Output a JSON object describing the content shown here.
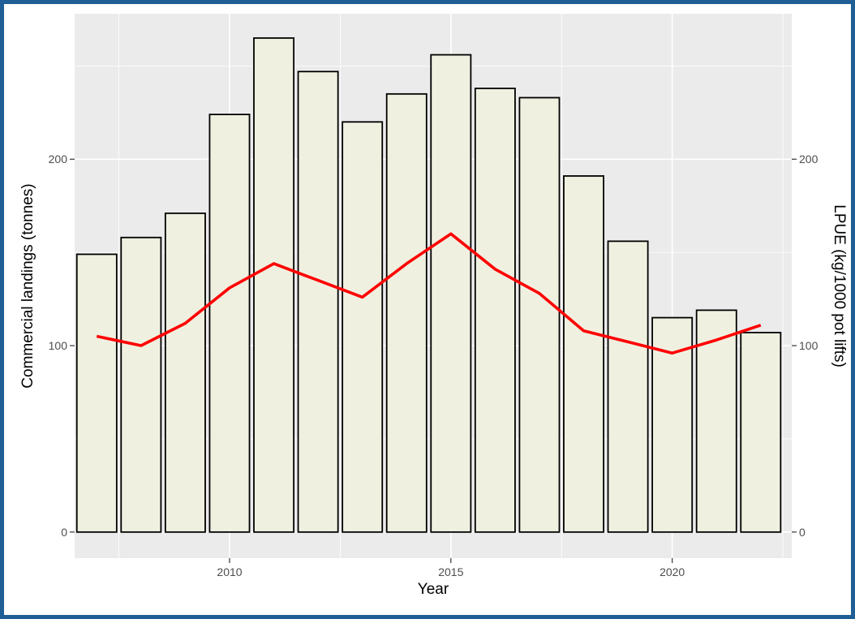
{
  "colors": {
    "border": "#1f5f96",
    "panel": "#ebebeb",
    "grid": "#ffffff",
    "bar_fill": "#f0f0e0",
    "bar_stroke": "#000000",
    "line": "#ff0000"
  },
  "chart_data": {
    "type": "bar",
    "title": "",
    "xlabel": "Year",
    "ylabel": "Commercial landings (tonnes)",
    "ylabel_right": "LPUE (kg/1000 pot lifts)",
    "xlim": [
      2006.5,
      2022.7
    ],
    "ylim": [
      -14,
      278
    ],
    "x_ticks": [
      2010,
      2015,
      2020
    ],
    "y_ticks": [
      0,
      100,
      200
    ],
    "y_right_ticks": [
      0,
      100,
      200
    ],
    "grid": true,
    "legend": "none",
    "x": [
      2007,
      2008,
      2009,
      2010,
      2011,
      2012,
      2013,
      2014,
      2015,
      2016,
      2017,
      2018,
      2019,
      2020,
      2021,
      2022
    ],
    "series": [
      {
        "type": "bar",
        "axis": "left",
        "values": [
          149,
          158,
          171,
          224,
          265,
          247,
          220,
          235,
          256,
          238,
          233,
          191,
          156,
          115,
          119,
          107
        ]
      },
      {
        "type": "line",
        "axis": "right",
        "values": [
          105,
          100,
          112,
          131,
          144,
          135,
          126,
          144,
          160,
          141,
          128,
          108,
          102,
          96,
          103,
          111
        ]
      }
    ]
  }
}
